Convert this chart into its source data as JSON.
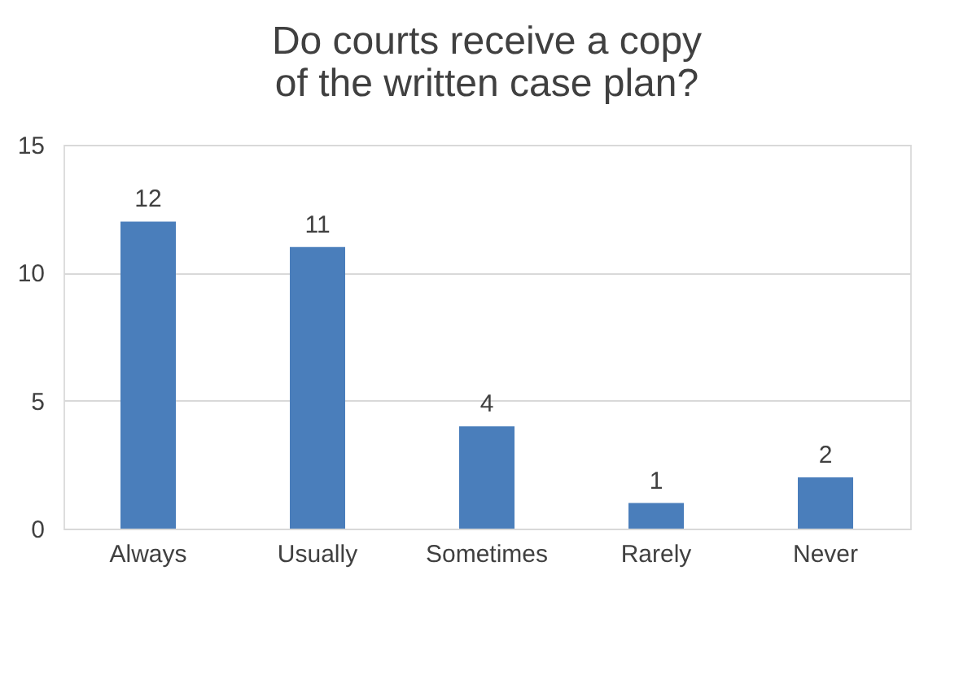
{
  "chart_data": {
    "type": "bar",
    "title": "Do courts receive a copy of the written case plan?",
    "categories": [
      "Always",
      "Usually",
      "Sometimes",
      "Rarely",
      "Never"
    ],
    "values": [
      12,
      11,
      4,
      1,
      2
    ],
    "color": "#4a7ebb",
    "ylim": [
      0,
      15
    ],
    "yticks": [
      0,
      5,
      10,
      15
    ],
    "grid": "y",
    "data_labels": true
  }
}
